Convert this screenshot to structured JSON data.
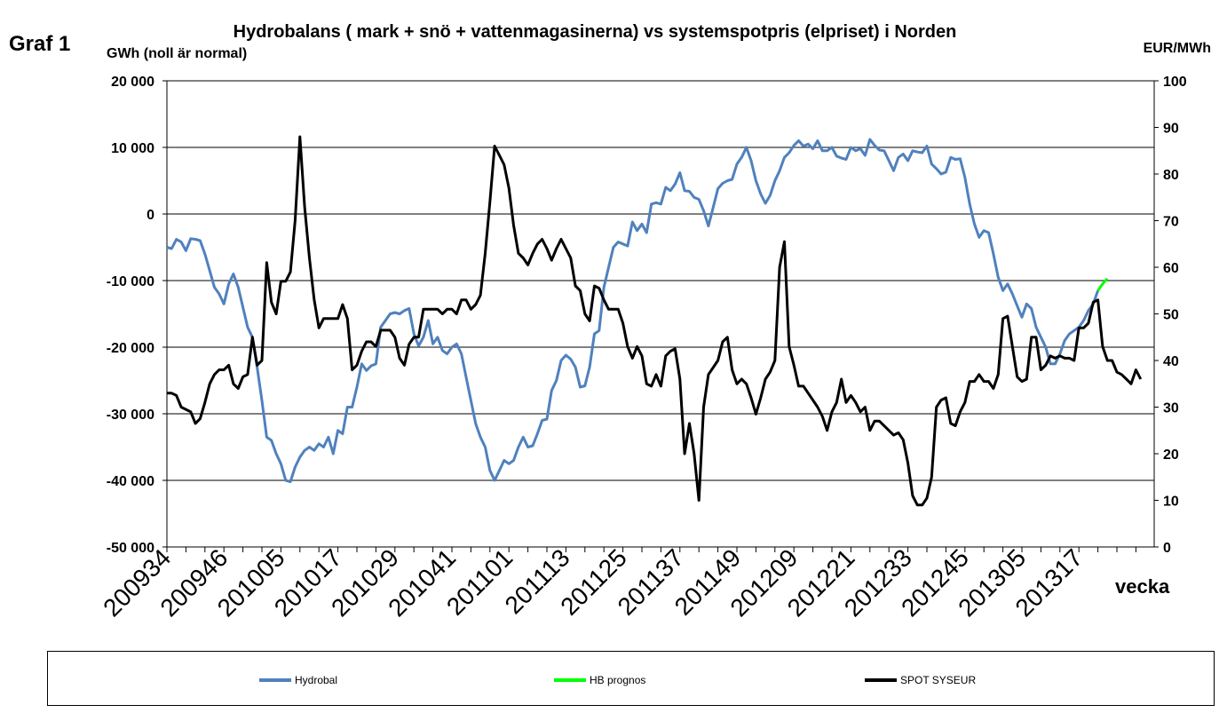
{
  "page": {
    "figure_label": "Graf 1"
  },
  "chart_data": {
    "type": "line",
    "title": "Hydrobalans ( mark + snö + vattenmagasinerna) vs systemspotpris (elpriset) i Norden",
    "ylabel_left": "GWh (noll är normal)",
    "ylabel_right": "EUR/MWh",
    "xlabel": "vecka",
    "x_ticks": [
      "200934",
      "200946",
      "201005",
      "201017",
      "201029",
      "201041",
      "201101",
      "201113",
      "201125",
      "201137",
      "201149",
      "201209",
      "201221",
      "201233",
      "201245",
      "201305",
      "201317"
    ],
    "ylim_left": [
      -50000,
      20000
    ],
    "yticks_left": [
      20000,
      10000,
      0,
      -10000,
      -20000,
      -30000,
      -40000,
      -50000
    ],
    "ytick_labels_left": [
      "20 000",
      "10 000",
      "0",
      "-10 000",
      "-20 000",
      "-30 000",
      "-40 000",
      "-50 000"
    ],
    "ylim_right": [
      0,
      100
    ],
    "yticks_right": [
      100,
      90,
      80,
      70,
      60,
      50,
      40,
      30,
      20,
      10,
      0
    ],
    "ytick_labels_right": [
      "100",
      "90",
      "80",
      "70",
      "60",
      "50",
      "40",
      "30",
      "20",
      "10",
      "0"
    ],
    "grid": "horizontal",
    "legend_position": "bottom",
    "series": [
      {
        "name": "Hydrobal",
        "axis": "left",
        "color": "#4f81bd",
        "values": [
          -5000,
          -5200,
          -3800,
          -4200,
          -5500,
          -3700,
          -3800,
          -4000,
          -6000,
          -8500,
          -11000,
          -12000,
          -13500,
          -10500,
          -9000,
          -11000,
          -14000,
          -17000,
          -18500,
          -23000,
          -28000,
          -33500,
          -34000,
          -36000,
          -37500,
          -40000,
          -40200,
          -38000,
          -36500,
          -35500,
          -35000,
          -35500,
          -34500,
          -35000,
          -33500,
          -36000,
          -32500,
          -33000,
          -29000,
          -29000,
          -26000,
          -22500,
          -23500,
          -22800,
          -22500,
          -17000,
          -16000,
          -15000,
          -14800,
          -15000,
          -14500,
          -14200,
          -18000,
          -19800,
          -18500,
          -16000,
          -19500,
          -18500,
          -20500,
          -21000,
          -20000,
          -19500,
          -21000,
          -24500,
          -28000,
          -31500,
          -33500,
          -35000,
          -38500,
          -40000,
          -38500,
          -37000,
          -37500,
          -37000,
          -35000,
          -33500,
          -35000,
          -34800,
          -33000,
          -31000,
          -30800,
          -26500,
          -25000,
          -22000,
          -21200,
          -21800,
          -23000,
          -26000,
          -25800,
          -23000,
          -18000,
          -17500,
          -11000,
          -8000,
          -5000,
          -4200,
          -4500,
          -4800,
          -1200,
          -2500,
          -1500,
          -2800,
          1500,
          1700,
          1500,
          4000,
          3500,
          4500,
          6200,
          3500,
          3400,
          2500,
          2200,
          500,
          -1800,
          1000,
          3800,
          4600,
          5000,
          5200,
          7500,
          8500,
          10000,
          8000,
          5000,
          3000,
          1600,
          2800,
          5000,
          6500,
          8500,
          9200,
          10300,
          11000,
          10200,
          10500,
          9800,
          11000,
          9500,
          9500,
          10000,
          8700,
          8400,
          8200,
          10000,
          9500,
          9800,
          8800,
          11200,
          10300,
          9600,
          9500,
          8000,
          6500,
          8500,
          9000,
          8000,
          9500,
          9300,
          9200,
          10200,
          7500,
          6800,
          6000,
          6300,
          8500,
          8200,
          8300,
          5500,
          1500,
          -1500,
          -3500,
          -2500,
          -2800,
          -6000,
          -9500,
          -11500,
          -10500,
          -12000,
          -13800,
          -15500,
          -13500,
          -14200,
          -17000,
          -18500,
          -20000,
          -22500,
          -22500,
          -21000,
          -19000,
          -18000,
          -17500,
          -17000,
          -16000,
          -14500,
          -13500,
          -11500
        ]
      },
      {
        "name": "HB prognos",
        "axis": "left",
        "color": "#00ff00",
        "x_start": 196,
        "values": [
          -11500,
          -10500,
          -9700
        ]
      },
      {
        "name": "SPOT SYSEUR",
        "axis": "right",
        "color": "#000000",
        "values": [
          33,
          33,
          32.5,
          30,
          29.5,
          29,
          26.5,
          27.5,
          31,
          35,
          37,
          38,
          38,
          39,
          35,
          34,
          36.5,
          37,
          45,
          39,
          40,
          61,
          52.5,
          50,
          57,
          57,
          59,
          70,
          88,
          73,
          62,
          53,
          47,
          49,
          49,
          49,
          49,
          52,
          49,
          38,
          39,
          42,
          44,
          44,
          43,
          46.5,
          46.5,
          46.5,
          45,
          40.5,
          39,
          43.5,
          45,
          45,
          51,
          51,
          51,
          51,
          50,
          51,
          51,
          50,
          53,
          53,
          51,
          52,
          54,
          63,
          74,
          86,
          84,
          82,
          77,
          69,
          63,
          62,
          60.5,
          63,
          65,
          66,
          64,
          61.5,
          64,
          66,
          64,
          62,
          56,
          55,
          50,
          48.5,
          56,
          55.5,
          53,
          51,
          51,
          51,
          48,
          43,
          40.5,
          43,
          41,
          35,
          34.5,
          37,
          34.5,
          41,
          42,
          42.5,
          36,
          20,
          26.5,
          20,
          10,
          30,
          37,
          38.5,
          40,
          44,
          45,
          38,
          35,
          36,
          35,
          32,
          28.5,
          32,
          36,
          37.5,
          40,
          60,
          65.5,
          43,
          39,
          34.5,
          34.5,
          33,
          31.5,
          30,
          28,
          25,
          29,
          31,
          36,
          31,
          32.5,
          31,
          29,
          30,
          25,
          27,
          27,
          26,
          25,
          24,
          24.5,
          23,
          18,
          11,
          9,
          9,
          10.5,
          15,
          30,
          31.5,
          32,
          26.5,
          26,
          29,
          31,
          35.5,
          35.5,
          37,
          35.5,
          35.5,
          34,
          37,
          49,
          49.5,
          43,
          36.5,
          35.5,
          36,
          45,
          45,
          38,
          39,
          41,
          40.5,
          41,
          40.5,
          40.5,
          40,
          47,
          47,
          48,
          52.5,
          53,
          43,
          40,
          40,
          37.5,
          37,
          36,
          35,
          38,
          36
        ]
      }
    ]
  },
  "legend": {
    "hydrobal_label": "Hydrobal",
    "prognos_label": "HB prognos",
    "spot_label": "SPOT SYSEUR",
    "hydrobal_color": "#4f81bd",
    "prognos_color": "#00ff00",
    "spot_color": "#000000"
  }
}
